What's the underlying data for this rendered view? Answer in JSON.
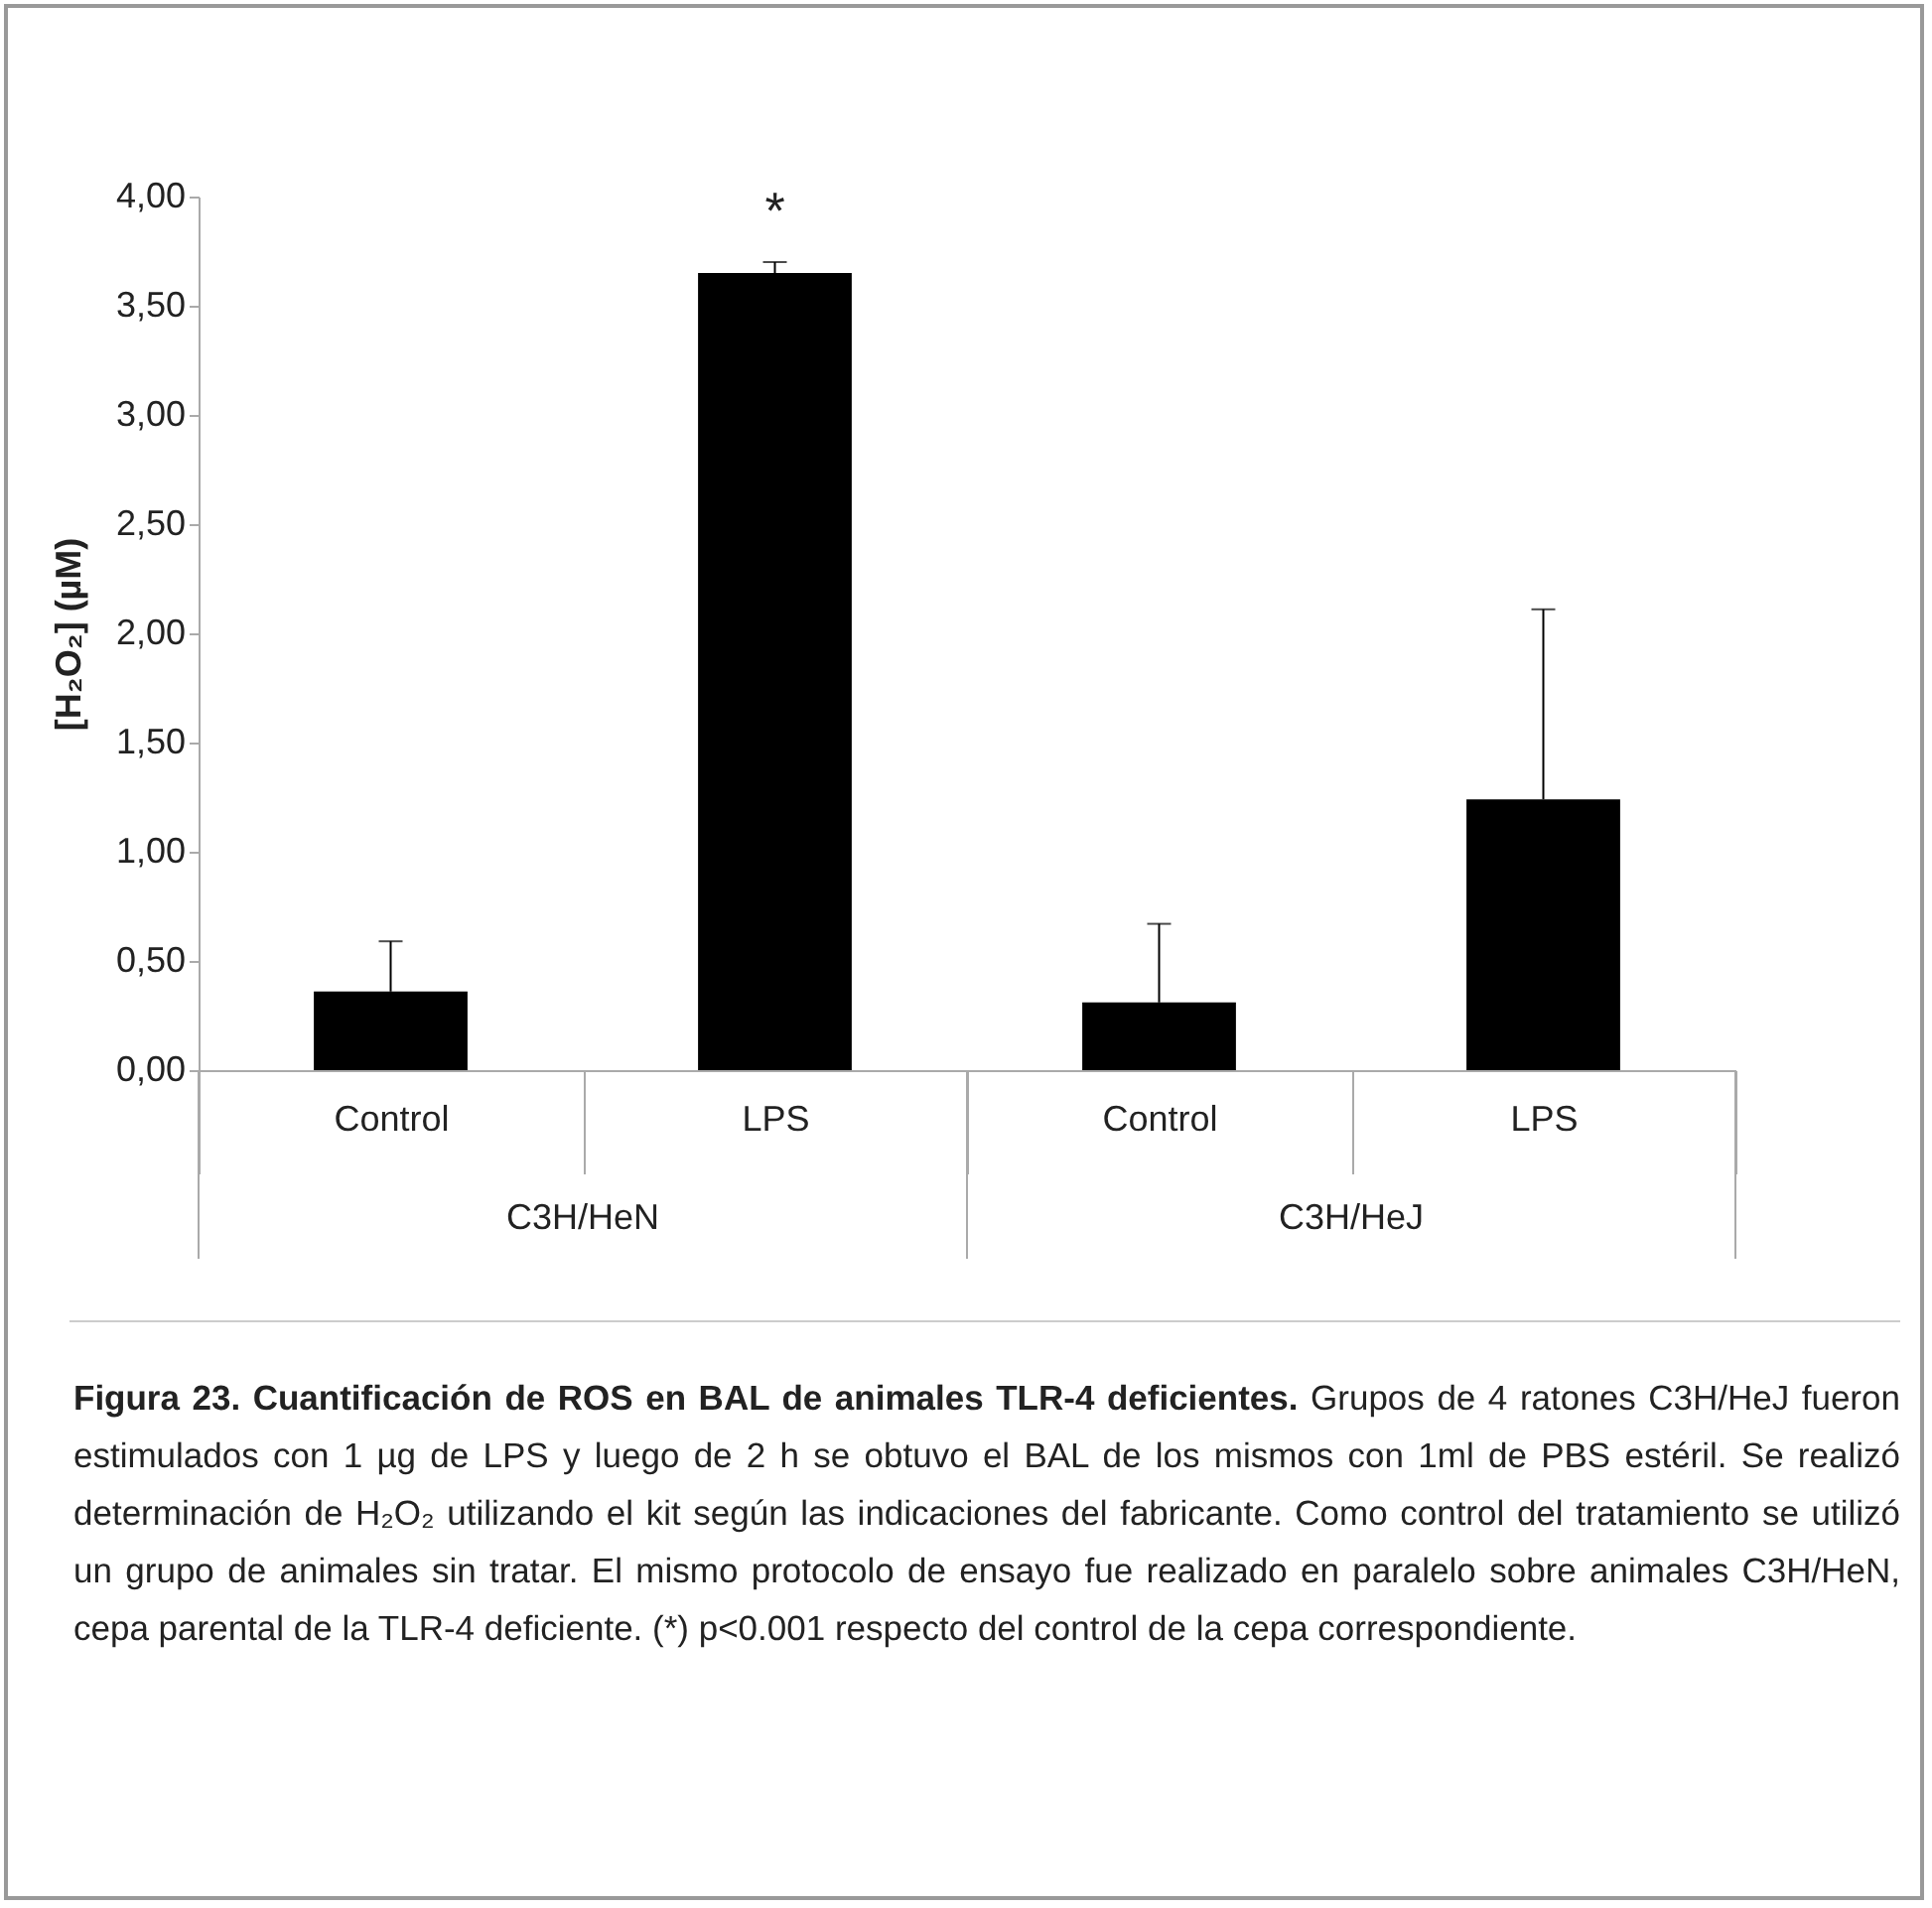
{
  "chart_data": {
    "type": "bar",
    "ylabel": "[H₂O₂] (µM)",
    "categories": [
      "Control",
      "LPS",
      "Control",
      "LPS"
    ],
    "values": [
      0.36,
      3.65,
      0.31,
      1.24
    ],
    "errors": [
      [
        0.36,
        0.59
      ],
      [
        3.65,
        3.7
      ],
      [
        0.31,
        0.67
      ],
      [
        1.24,
        2.11
      ]
    ],
    "color": "#000000",
    "ylim": [
      0,
      4
    ],
    "yticks": [
      {
        "value": 0,
        "label": "0,00"
      },
      {
        "value": 0.5,
        "label": "0,50"
      },
      {
        "value": 1,
        "label": "1,00"
      },
      {
        "value": 1.5,
        "label": "1,50"
      },
      {
        "value": 2,
        "label": "2,00"
      },
      {
        "value": 2.5,
        "label": "2,50"
      },
      {
        "value": 3,
        "label": "3,00"
      },
      {
        "value": 3.5,
        "label": "3,50"
      },
      {
        "value": 4,
        "label": "4,00"
      }
    ],
    "grid": false,
    "annotations": [
      "*",
      "C3H/HeN",
      "C3H/HeJ",
      "Figura 23. Cuantificación de ROS en BAL de animales TLR-4 deficientes.",
      "Grupos de 4 ratones C3H/HeJ fueron estimulados con 1 µg de LPS y luego de 2 h se obtuvo el BAL de los mismos con 1ml de PBS estéril. Se realizó determinación de H₂O₂ utilizando el kit según las indicaciones del fabricante. Como control del tratamiento se utilizó un grupo de animales sin tratar. El mismo protocolo de ensayo fue realizado en paralelo sobre animales C3H/HeN, cepa parental de la TLR-4 deficiente. (*) p<0.001 respecto del control de la cepa correspondiente."
    ]
  }
}
